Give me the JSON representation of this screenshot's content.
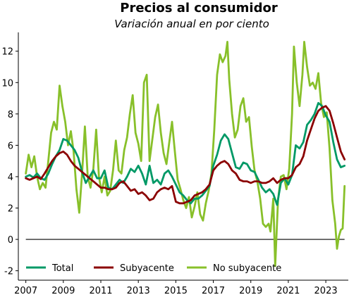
{
  "chart_data": {
    "type": "line",
    "title": "Precios al consumidor",
    "subtitle": "Variación anual en por ciento",
    "xlabel": "",
    "ylabel": "",
    "xlim": [
      2006.6,
      2024.2
    ],
    "ylim": [
      -2.6,
      13.2
    ],
    "x_ticks": [
      2007,
      2009,
      2011,
      2013,
      2015,
      2017,
      2019,
      2021,
      2023
    ],
    "y_ticks": [
      -2,
      0,
      2,
      4,
      6,
      8,
      10,
      12
    ],
    "grid": false,
    "legend_position": "bottom-left",
    "reference_line": 0,
    "series": [
      {
        "name": "Total",
        "color": "#009966",
        "points": [
          [
            2007.0,
            4.0
          ],
          [
            2007.2,
            4.1
          ],
          [
            2007.4,
            3.95
          ],
          [
            2007.6,
            4.2
          ],
          [
            2007.8,
            3.9
          ],
          [
            2008.0,
            3.8
          ],
          [
            2008.2,
            4.2
          ],
          [
            2008.4,
            4.8
          ],
          [
            2008.6,
            5.3
          ],
          [
            2008.8,
            5.7
          ],
          [
            2009.0,
            6.4
          ],
          [
            2009.2,
            6.3
          ],
          [
            2009.4,
            6.0
          ],
          [
            2009.6,
            5.7
          ],
          [
            2009.8,
            5.2
          ],
          [
            2010.0,
            4.3
          ],
          [
            2010.2,
            3.6
          ],
          [
            2010.4,
            4.0
          ],
          [
            2010.6,
            4.4
          ],
          [
            2010.8,
            3.9
          ],
          [
            2011.0,
            3.9
          ],
          [
            2011.2,
            4.4
          ],
          [
            2011.4,
            3.3
          ],
          [
            2011.6,
            3.2
          ],
          [
            2011.8,
            3.5
          ],
          [
            2012.0,
            3.8
          ],
          [
            2012.2,
            3.6
          ],
          [
            2012.4,
            4.0
          ],
          [
            2012.6,
            4.5
          ],
          [
            2012.8,
            4.3
          ],
          [
            2013.0,
            4.7
          ],
          [
            2013.2,
            4.2
          ],
          [
            2013.4,
            3.5
          ],
          [
            2013.6,
            4.7
          ],
          [
            2013.8,
            3.6
          ],
          [
            2014.0,
            3.8
          ],
          [
            2014.2,
            3.5
          ],
          [
            2014.4,
            4.2
          ],
          [
            2014.6,
            4.4
          ],
          [
            2014.8,
            4.0
          ],
          [
            2015.0,
            3.5
          ],
          [
            2015.2,
            3.0
          ],
          [
            2015.4,
            2.8
          ],
          [
            2015.6,
            2.5
          ],
          [
            2015.8,
            2.3
          ],
          [
            2016.0,
            2.6
          ],
          [
            2016.2,
            2.6
          ],
          [
            2016.4,
            2.8
          ],
          [
            2016.6,
            3.1
          ],
          [
            2016.8,
            3.4
          ],
          [
            2017.0,
            4.7
          ],
          [
            2017.2,
            5.4
          ],
          [
            2017.4,
            6.3
          ],
          [
            2017.6,
            6.7
          ],
          [
            2017.8,
            6.4
          ],
          [
            2018.0,
            5.5
          ],
          [
            2018.2,
            4.6
          ],
          [
            2018.4,
            4.5
          ],
          [
            2018.6,
            4.9
          ],
          [
            2018.8,
            4.8
          ],
          [
            2019.0,
            4.4
          ],
          [
            2019.2,
            4.3
          ],
          [
            2019.4,
            3.8
          ],
          [
            2019.6,
            3.3
          ],
          [
            2019.8,
            3.0
          ],
          [
            2020.0,
            3.2
          ],
          [
            2020.2,
            2.9
          ],
          [
            2020.4,
            2.2
          ],
          [
            2020.6,
            3.6
          ],
          [
            2020.8,
            3.9
          ],
          [
            2021.0,
            3.5
          ],
          [
            2021.2,
            4.1
          ],
          [
            2021.4,
            6.0
          ],
          [
            2021.6,
            5.8
          ],
          [
            2021.8,
            6.2
          ],
          [
            2022.0,
            7.3
          ],
          [
            2022.2,
            7.6
          ],
          [
            2022.4,
            8.0
          ],
          [
            2022.6,
            8.7
          ],
          [
            2022.8,
            8.5
          ],
          [
            2023.0,
            7.9
          ],
          [
            2023.2,
            7.5
          ],
          [
            2023.4,
            6.2
          ],
          [
            2023.6,
            5.1
          ],
          [
            2023.8,
            4.6
          ],
          [
            2024.0,
            4.7
          ]
        ]
      },
      {
        "name": "Subyacente",
        "color": "#8b0000",
        "points": [
          [
            2007.0,
            3.9
          ],
          [
            2007.2,
            3.8
          ],
          [
            2007.4,
            3.9
          ],
          [
            2007.6,
            4.0
          ],
          [
            2007.8,
            3.85
          ],
          [
            2008.0,
            4.2
          ],
          [
            2008.2,
            4.6
          ],
          [
            2008.4,
            5.0
          ],
          [
            2008.6,
            5.3
          ],
          [
            2008.8,
            5.5
          ],
          [
            2009.0,
            5.6
          ],
          [
            2009.2,
            5.4
          ],
          [
            2009.4,
            5.0
          ],
          [
            2009.6,
            4.7
          ],
          [
            2009.8,
            4.5
          ],
          [
            2010.0,
            4.3
          ],
          [
            2010.2,
            4.1
          ],
          [
            2010.4,
            3.9
          ],
          [
            2010.6,
            3.7
          ],
          [
            2010.8,
            3.5
          ],
          [
            2011.0,
            3.3
          ],
          [
            2011.2,
            3.3
          ],
          [
            2011.4,
            3.2
          ],
          [
            2011.6,
            3.2
          ],
          [
            2011.8,
            3.3
          ],
          [
            2012.0,
            3.6
          ],
          [
            2012.2,
            3.7
          ],
          [
            2012.4,
            3.4
          ],
          [
            2012.6,
            3.1
          ],
          [
            2012.8,
            3.2
          ],
          [
            2013.0,
            2.9
          ],
          [
            2013.2,
            3.0
          ],
          [
            2013.4,
            2.8
          ],
          [
            2013.6,
            2.5
          ],
          [
            2013.8,
            2.6
          ],
          [
            2014.0,
            3.0
          ],
          [
            2014.2,
            3.2
          ],
          [
            2014.4,
            3.3
          ],
          [
            2014.6,
            3.2
          ],
          [
            2014.8,
            3.4
          ],
          [
            2015.0,
            2.4
          ],
          [
            2015.2,
            2.3
          ],
          [
            2015.4,
            2.3
          ],
          [
            2015.6,
            2.4
          ],
          [
            2015.8,
            2.5
          ],
          [
            2016.0,
            2.8
          ],
          [
            2016.2,
            2.9
          ],
          [
            2016.4,
            3.0
          ],
          [
            2016.6,
            3.2
          ],
          [
            2016.8,
            3.5
          ],
          [
            2017.0,
            4.4
          ],
          [
            2017.2,
            4.7
          ],
          [
            2017.4,
            4.9
          ],
          [
            2017.6,
            5.0
          ],
          [
            2017.8,
            4.8
          ],
          [
            2018.0,
            4.4
          ],
          [
            2018.2,
            4.2
          ],
          [
            2018.4,
            3.8
          ],
          [
            2018.6,
            3.7
          ],
          [
            2018.8,
            3.7
          ],
          [
            2019.0,
            3.6
          ],
          [
            2019.2,
            3.7
          ],
          [
            2019.4,
            3.7
          ],
          [
            2019.6,
            3.6
          ],
          [
            2019.8,
            3.6
          ],
          [
            2020.0,
            3.7
          ],
          [
            2020.2,
            3.9
          ],
          [
            2020.4,
            3.6
          ],
          [
            2020.6,
            3.8
          ],
          [
            2020.8,
            3.9
          ],
          [
            2021.0,
            3.9
          ],
          [
            2021.2,
            4.1
          ],
          [
            2021.4,
            4.6
          ],
          [
            2021.6,
            4.8
          ],
          [
            2021.8,
            5.3
          ],
          [
            2022.0,
            6.3
          ],
          [
            2022.2,
            7.0
          ],
          [
            2022.4,
            7.7
          ],
          [
            2022.6,
            8.2
          ],
          [
            2022.8,
            8.4
          ],
          [
            2023.0,
            8.5
          ],
          [
            2023.2,
            8.2
          ],
          [
            2023.4,
            7.4
          ],
          [
            2023.6,
            6.5
          ],
          [
            2023.8,
            5.6
          ],
          [
            2024.0,
            5.1
          ]
        ]
      },
      {
        "name": "No subyacente",
        "color": "#88c02a",
        "points": [
          [
            2007.0,
            4.2
          ],
          [
            2007.15,
            5.4
          ],
          [
            2007.3,
            4.6
          ],
          [
            2007.45,
            5.3
          ],
          [
            2007.6,
            4.0
          ],
          [
            2007.75,
            3.2
          ],
          [
            2007.9,
            3.6
          ],
          [
            2008.05,
            3.3
          ],
          [
            2008.2,
            5.0
          ],
          [
            2008.35,
            6.8
          ],
          [
            2008.5,
            7.5
          ],
          [
            2008.65,
            7.0
          ],
          [
            2008.8,
            9.8
          ],
          [
            2008.95,
            8.5
          ],
          [
            2009.1,
            7.5
          ],
          [
            2009.25,
            6.0
          ],
          [
            2009.4,
            6.9
          ],
          [
            2009.55,
            5.6
          ],
          [
            2009.7,
            3.2
          ],
          [
            2009.85,
            1.7
          ],
          [
            2010.0,
            4.2
          ],
          [
            2010.15,
            7.2
          ],
          [
            2010.3,
            4.0
          ],
          [
            2010.45,
            3.3
          ],
          [
            2010.6,
            4.5
          ],
          [
            2010.75,
            7.0
          ],
          [
            2010.9,
            4.0
          ],
          [
            2011.05,
            3.0
          ],
          [
            2011.2,
            4.0
          ],
          [
            2011.35,
            2.8
          ],
          [
            2011.5,
            3.1
          ],
          [
            2011.65,
            4.4
          ],
          [
            2011.8,
            6.3
          ],
          [
            2011.95,
            4.4
          ],
          [
            2012.1,
            4.2
          ],
          [
            2012.25,
            5.7
          ],
          [
            2012.4,
            6.5
          ],
          [
            2012.55,
            8.0
          ],
          [
            2012.7,
            9.2
          ],
          [
            2012.85,
            6.8
          ],
          [
            2013.0,
            6.1
          ],
          [
            2013.15,
            5.0
          ],
          [
            2013.3,
            10.0
          ],
          [
            2013.45,
            10.5
          ],
          [
            2013.6,
            5.0
          ],
          [
            2013.75,
            6.4
          ],
          [
            2013.9,
            7.8
          ],
          [
            2014.05,
            8.6
          ],
          [
            2014.2,
            6.8
          ],
          [
            2014.35,
            5.5
          ],
          [
            2014.5,
            4.8
          ],
          [
            2014.65,
            6.2
          ],
          [
            2014.8,
            7.5
          ],
          [
            2014.95,
            5.6
          ],
          [
            2015.1,
            3.8
          ],
          [
            2015.25,
            3.2
          ],
          [
            2015.4,
            2.5
          ],
          [
            2015.55,
            2.0
          ],
          [
            2015.7,
            2.7
          ],
          [
            2015.85,
            1.4
          ],
          [
            2016.0,
            2.1
          ],
          [
            2016.15,
            3.0
          ],
          [
            2016.3,
            1.6
          ],
          [
            2016.45,
            1.2
          ],
          [
            2016.6,
            2.3
          ],
          [
            2016.75,
            3.1
          ],
          [
            2016.9,
            4.2
          ],
          [
            2017.05,
            7.0
          ],
          [
            2017.2,
            10.5
          ],
          [
            2017.35,
            11.8
          ],
          [
            2017.5,
            11.3
          ],
          [
            2017.65,
            11.7
          ],
          [
            2017.75,
            12.6
          ],
          [
            2017.85,
            10.2
          ],
          [
            2018.0,
            8.0
          ],
          [
            2018.15,
            6.5
          ],
          [
            2018.3,
            7.0
          ],
          [
            2018.45,
            8.5
          ],
          [
            2018.6,
            9.0
          ],
          [
            2018.75,
            7.5
          ],
          [
            2018.9,
            7.8
          ],
          [
            2019.05,
            5.9
          ],
          [
            2019.2,
            4.4
          ],
          [
            2019.35,
            3.7
          ],
          [
            2019.5,
            2.6
          ],
          [
            2019.65,
            1.0
          ],
          [
            2019.8,
            0.8
          ],
          [
            2019.95,
            1.0
          ],
          [
            2020.05,
            0.5
          ],
          [
            2020.2,
            2.6
          ],
          [
            2020.3,
            -1.7
          ],
          [
            2020.45,
            2.5
          ],
          [
            2020.6,
            4.0
          ],
          [
            2020.75,
            4.1
          ],
          [
            2020.9,
            3.2
          ],
          [
            2021.05,
            4.5
          ],
          [
            2021.2,
            8.0
          ],
          [
            2021.3,
            12.3
          ],
          [
            2021.45,
            10.0
          ],
          [
            2021.6,
            8.5
          ],
          [
            2021.75,
            10.5
          ],
          [
            2021.85,
            12.6
          ],
          [
            2022.0,
            11.0
          ],
          [
            2022.15,
            9.8
          ],
          [
            2022.3,
            10.0
          ],
          [
            2022.45,
            9.6
          ],
          [
            2022.6,
            10.6
          ],
          [
            2022.75,
            8.7
          ],
          [
            2022.9,
            7.8
          ],
          [
            2023.05,
            8.1
          ],
          [
            2023.2,
            5.8
          ],
          [
            2023.35,
            2.5
          ],
          [
            2023.5,
            1.0
          ],
          [
            2023.6,
            -0.6
          ],
          [
            2023.7,
            0.2
          ],
          [
            2023.8,
            0.6
          ],
          [
            2023.9,
            0.7
          ],
          [
            2024.0,
            3.4
          ]
        ]
      }
    ]
  }
}
